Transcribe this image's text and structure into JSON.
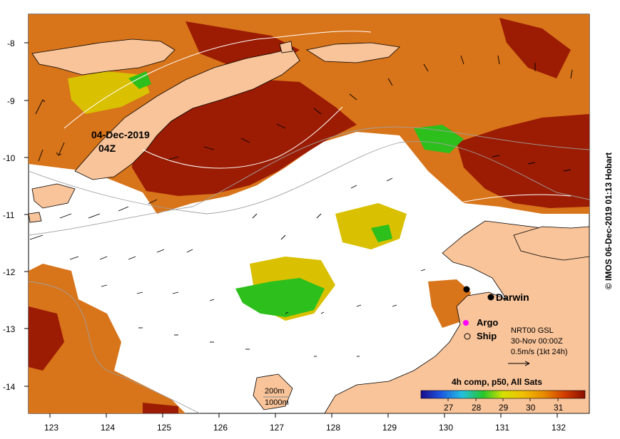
{
  "map": {
    "date_label": "04-Dec-2019",
    "time_label": "04Z",
    "city_label": "Darwin",
    "argo_label": "Argo",
    "ship_label": "Ship",
    "info_line1": "NRT00 GSL",
    "info_line2": "30-Nov 00:00Z",
    "info_line3": "0.5m/s (1kt 24h)",
    "bathy_label1": "200m",
    "bathy_label2": "1000m",
    "colorbar_title": "4h comp, p50, All Sats",
    "colorbar_ticks": [
      "27",
      "28",
      "29",
      "30",
      "31"
    ],
    "x_ticks": [
      "123",
      "124",
      "125",
      "126",
      "127",
      "128",
      "129",
      "130",
      "131",
      "132"
    ],
    "y_ticks": [
      "-8",
      "-9",
      "-10",
      "-11",
      "-12",
      "-13",
      "-14"
    ],
    "credit": "© IMOS 06-Dec-2019 01:13 Hobart"
  },
  "colors": {
    "land": "#f9c49a",
    "sst_dark_red": "#9e1a00",
    "sst_orange": "#e07a00",
    "sst_yellow": "#d8c400",
    "sst_green": "#2cc21a",
    "argo": "#ff00ff"
  }
}
